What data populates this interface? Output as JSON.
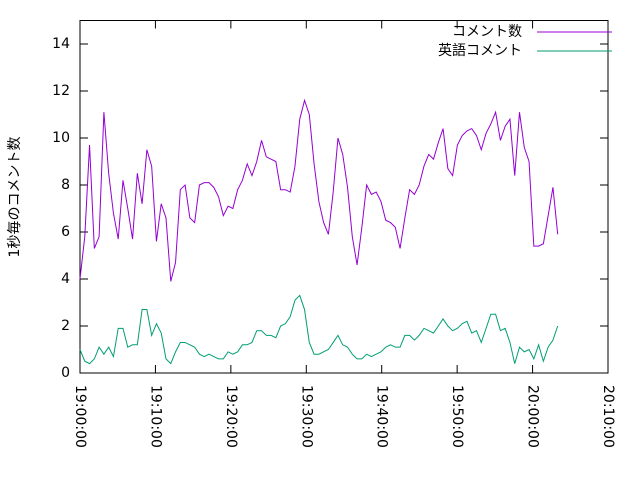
{
  "chart_data": {
    "type": "line",
    "ylabel": "1秒毎のコメント数",
    "x": [
      "19:00:00",
      "19:00:38",
      "19:01:16",
      "19:01:54",
      "19:02:32",
      "19:03:10",
      "19:03:48",
      "19:04:26",
      "19:05:04",
      "19:05:42",
      "19:06:20",
      "19:06:58",
      "19:07:36",
      "19:08:14",
      "19:08:52",
      "19:09:30",
      "19:10:08",
      "19:10:46",
      "19:11:24",
      "19:12:02",
      "19:12:40",
      "19:13:18",
      "19:13:56",
      "19:14:34",
      "19:15:12",
      "19:15:50",
      "19:16:28",
      "19:17:06",
      "19:17:44",
      "19:18:22",
      "19:19:00",
      "19:19:38",
      "19:20:16",
      "19:20:54",
      "19:21:32",
      "19:22:10",
      "19:22:48",
      "19:23:26",
      "19:24:04",
      "19:24:42",
      "19:25:20",
      "19:25:58",
      "19:26:36",
      "19:27:14",
      "19:27:52",
      "19:28:30",
      "19:29:08",
      "19:29:46",
      "19:30:24",
      "19:31:02",
      "19:31:40",
      "19:32:18",
      "19:32:56",
      "19:33:34",
      "19:34:12",
      "19:34:50",
      "19:35:28",
      "19:36:06",
      "19:36:44",
      "19:37:22",
      "19:38:00",
      "19:38:38",
      "19:39:16",
      "19:39:54",
      "19:40:32",
      "19:41:10",
      "19:41:48",
      "19:42:26",
      "19:43:04",
      "19:43:42",
      "19:44:20",
      "19:44:58",
      "19:45:36",
      "19:46:14",
      "19:46:52",
      "19:47:30",
      "19:48:08",
      "19:48:46",
      "19:49:24",
      "19:50:02",
      "19:50:40",
      "19:51:18",
      "19:51:56",
      "19:52:34",
      "19:53:12",
      "19:53:50",
      "19:54:28",
      "19:55:06",
      "19:55:44",
      "19:56:22",
      "19:57:00",
      "19:57:38",
      "19:58:16",
      "19:58:54",
      "19:59:32",
      "20:00:10",
      "20:00:48",
      "20:01:26",
      "20:02:04",
      "20:02:42",
      "20:03:20"
    ],
    "series": [
      {
        "name": "コメント数",
        "color": "#9400d3",
        "values": [
          4.0,
          5.8,
          9.7,
          5.3,
          5.8,
          11.1,
          8.5,
          6.8,
          5.7,
          8.2,
          7.0,
          5.7,
          8.5,
          7.2,
          9.5,
          8.8,
          5.6,
          7.2,
          6.6,
          3.9,
          4.7,
          7.8,
          8.0,
          6.6,
          6.4,
          8.0,
          8.1,
          8.1,
          7.9,
          7.5,
          6.7,
          7.1,
          7.0,
          7.8,
          8.2,
          8.9,
          8.4,
          9.0,
          9.9,
          9.2,
          9.1,
          9.0,
          7.8,
          7.8,
          7.7,
          8.8,
          10.8,
          11.6,
          11.0,
          8.9,
          7.3,
          6.4,
          5.9,
          7.7,
          10.0,
          9.3,
          7.9,
          5.8,
          4.6,
          6.2,
          8.0,
          7.6,
          7.7,
          7.3,
          6.5,
          6.4,
          6.2,
          5.3,
          6.6,
          7.8,
          7.6,
          8.0,
          8.8,
          9.3,
          9.1,
          9.8,
          10.4,
          8.7,
          8.4,
          9.7,
          10.1,
          10.3,
          10.4,
          10.1,
          9.5,
          10.2,
          10.6,
          11.1,
          9.9,
          10.5,
          10.8,
          8.4,
          11.1,
          9.6,
          9.0,
          5.4,
          5.4,
          5.5,
          6.7,
          7.9,
          5.9
        ]
      },
      {
        "name": "英語コメント",
        "color": "#009e73",
        "values": [
          1.0,
          0.5,
          0.4,
          0.6,
          1.1,
          0.8,
          1.1,
          0.7,
          1.9,
          1.9,
          1.1,
          1.2,
          1.2,
          2.7,
          2.7,
          1.6,
          2.1,
          1.7,
          0.6,
          0.4,
          0.9,
          1.3,
          1.3,
          1.2,
          1.1,
          0.8,
          0.7,
          0.8,
          0.7,
          0.6,
          0.6,
          0.9,
          0.8,
          0.9,
          1.2,
          1.2,
          1.3,
          1.8,
          1.8,
          1.6,
          1.6,
          1.5,
          2.0,
          2.1,
          2.4,
          3.1,
          3.3,
          2.7,
          1.3,
          0.8,
          0.8,
          0.9,
          1.0,
          1.3,
          1.6,
          1.2,
          1.1,
          0.8,
          0.6,
          0.6,
          0.8,
          0.7,
          0.8,
          0.9,
          1.1,
          1.2,
          1.1,
          1.1,
          1.6,
          1.6,
          1.4,
          1.6,
          1.9,
          1.8,
          1.7,
          2.0,
          2.3,
          2.0,
          1.8,
          1.9,
          2.1,
          2.2,
          1.7,
          1.8,
          1.3,
          1.9,
          2.5,
          2.5,
          1.8,
          1.9,
          1.3,
          0.4,
          1.1,
          0.9,
          1.0,
          0.6,
          1.2,
          0.5,
          1.1,
          1.4,
          2.0
        ]
      }
    ],
    "xlim": [
      "19:00:00",
      "20:10:00"
    ],
    "xticks": [
      "19:00:00",
      "19:10:00",
      "19:20:00",
      "19:30:00",
      "19:40:00",
      "19:50:00",
      "20:00:00",
      "20:10:00"
    ],
    "ylim": [
      0,
      15
    ],
    "yticks": [
      0,
      2,
      4,
      6,
      8,
      10,
      12,
      14
    ],
    "legend": "top-right"
  }
}
